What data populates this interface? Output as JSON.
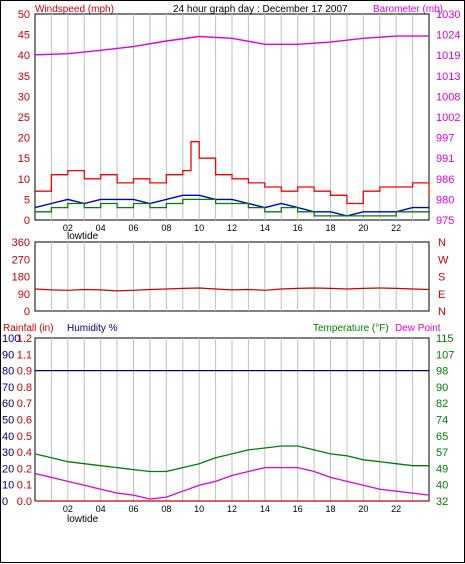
{
  "chart_data": [
    {
      "type": "line",
      "title": "24 hour graph day : December 17 2007",
      "left_axis_label": "Windspeed (mph)",
      "right_axis_label": "Barometer (mb)",
      "left_ylim": [
        0,
        50
      ],
      "left_ticks": [
        "0",
        "5",
        "10",
        "15",
        "20",
        "25",
        "30",
        "35",
        "40",
        "45",
        "50"
      ],
      "right_ylim": [
        975,
        1030
      ],
      "right_ticks": [
        "975",
        "980",
        "986",
        "991",
        "997",
        "1002",
        "1008",
        "1013",
        "1019",
        "1024",
        "1030"
      ],
      "x_ticks": [
        "02",
        "04",
        "06",
        "08",
        "10",
        "12",
        "14",
        "16",
        "18",
        "20",
        "22"
      ],
      "series": [
        {
          "name": "Barometer (mb)",
          "color": "#e000e0",
          "axis": "right",
          "x": [
            0,
            2,
            4,
            6,
            8,
            10,
            12,
            14,
            16,
            18,
            20,
            22,
            24
          ],
          "y": [
            1019.1,
            1019.4,
            1020.3,
            1021.3,
            1022.8,
            1024.0,
            1023.5,
            1021.9,
            1021.9,
            1022.5,
            1023.5,
            1024.1,
            1024.1
          ]
        },
        {
          "name": "",
          "color": "#ff0000",
          "axis": "left",
          "style": "gust",
          "x": [
            0,
            1,
            2,
            3,
            4,
            5,
            6,
            7,
            8,
            9,
            9.5,
            10,
            11,
            12,
            13,
            14,
            15,
            16,
            17,
            18,
            19,
            20,
            21,
            22,
            23,
            24
          ],
          "y": [
            7,
            11,
            12,
            10,
            11,
            9,
            10,
            9,
            11,
            12,
            19,
            15,
            11,
            10,
            9,
            8,
            7,
            8,
            7,
            6,
            4,
            7,
            8,
            8,
            9,
            6
          ]
        },
        {
          "name": "",
          "color": "#0000cc",
          "axis": "left",
          "style": "average",
          "x": [
            0,
            1,
            2,
            3,
            4,
            5,
            6,
            7,
            8,
            9,
            10,
            11,
            12,
            13,
            14,
            15,
            16,
            17,
            18,
            19,
            20,
            21,
            22,
            23,
            24
          ],
          "y": [
            3,
            4,
            5,
            4,
            5,
            5,
            5,
            4,
            5,
            6,
            6,
            5,
            5,
            4,
            3,
            4,
            3,
            2,
            2,
            1,
            2,
            2,
            2,
            3,
            3
          ]
        },
        {
          "name": "",
          "color": "#008000",
          "axis": "left",
          "style": "speed",
          "x": [
            0,
            1,
            2,
            3,
            4,
            5,
            6,
            7,
            8,
            9,
            10,
            11,
            12,
            13,
            14,
            15,
            16,
            17,
            18,
            19,
            20,
            21,
            22,
            23,
            24
          ],
          "y": [
            2,
            3,
            4,
            3,
            4,
            3,
            4,
            3,
            4,
            5,
            5,
            4,
            4,
            3,
            2,
            3,
            2,
            1,
            1,
            1,
            1,
            1,
            2,
            2,
            2
          ]
        }
      ],
      "grid": true
    },
    {
      "type": "line",
      "title": "",
      "right_axis_label": "N W S E N",
      "ylim": [
        0,
        360
      ],
      "left_ticks": [
        "0",
        "90",
        "180",
        "270",
        "360"
      ],
      "right_ticks": [
        "N",
        "E",
        "S",
        "W",
        "N"
      ],
      "series": [
        {
          "name": "",
          "color": "#cc0000",
          "x": [
            0,
            1,
            2,
            3,
            4,
            5,
            6,
            7,
            8,
            9,
            10,
            11,
            12,
            13,
            14,
            15,
            16,
            17,
            18,
            19,
            20,
            21,
            22,
            23,
            24
          ],
          "y": [
            115,
            110,
            108,
            112,
            110,
            105,
            108,
            112,
            115,
            118,
            120,
            115,
            110,
            112,
            108,
            115,
            118,
            120,
            118,
            115,
            118,
            120,
            118,
            115,
            112
          ]
        }
      ]
    },
    {
      "type": "line",
      "title": "",
      "left_axis_label": "Rainfall (in)",
      "humidity_label": "Humidity %",
      "right_axis_label": "Temperature (°F)",
      "dewpoint_label": "Dew Point",
      "x_ticks": [
        "02",
        "04",
        "06",
        "08",
        "10",
        "12",
        "14",
        "16",
        "18",
        "20",
        "22"
      ],
      "humidity_ticks": [
        "0",
        "10",
        "20",
        "30",
        "40",
        "50",
        "60",
        "70",
        "80",
        "90",
        "100"
      ],
      "rain_ticks": [
        "0.0",
        "0.1",
        "0.2",
        "0.4",
        "0.5",
        "0.6",
        "0.7",
        "0.8",
        "0.9",
        "1.1",
        "1.2"
      ],
      "temp_ticks": [
        "32",
        "40",
        "49",
        "57",
        "65",
        "74",
        "82",
        "90",
        "98",
        "107",
        "115"
      ],
      "ylim_humidity": [
        0,
        100
      ],
      "ylim_temperature": [
        32,
        115
      ],
      "series": [
        {
          "name": "",
          "color": "#000080",
          "axis": "humidity",
          "x": [
            0,
            24
          ],
          "y": [
            80,
            80
          ]
        },
        {
          "name": "",
          "color": "#008000",
          "axis": "temperature",
          "x": [
            0,
            1,
            2,
            3,
            4,
            5,
            6,
            7,
            8,
            9,
            10,
            11,
            12,
            13,
            14,
            15,
            16,
            17,
            18,
            19,
            20,
            21,
            22,
            23,
            24
          ],
          "y": [
            56,
            54,
            52,
            51,
            50,
            49,
            48,
            47,
            47,
            49,
            51,
            54,
            56,
            58,
            59,
            60,
            60,
            58,
            56,
            55,
            53,
            52,
            51,
            50,
            50
          ]
        },
        {
          "name": "",
          "color": "#e000e0",
          "axis": "temperature",
          "x": [
            0,
            1,
            2,
            3,
            4,
            5,
            6,
            7,
            8,
            9,
            10,
            11,
            12,
            13,
            14,
            15,
            16,
            17,
            18,
            19,
            20,
            21,
            22,
            23,
            24
          ],
          "y": [
            46,
            44,
            42,
            40,
            38,
            36,
            35,
            33,
            34,
            37,
            40,
            42,
            45,
            47,
            49,
            49,
            49,
            47,
            44,
            42,
            40,
            38,
            37,
            36,
            35
          ]
        },
        {
          "name": "",
          "color": "#cc0000",
          "axis": "rain",
          "x": [
            0,
            24
          ],
          "y": [
            0,
            0
          ]
        }
      ]
    }
  ],
  "tide_labels": [
    "lowtide",
    "lowtide"
  ],
  "colors": {
    "red": "#cc0000",
    "magenta": "#e000e0",
    "green": "#008000",
    "navy": "#000080",
    "grid": "#c0c0c0"
  }
}
